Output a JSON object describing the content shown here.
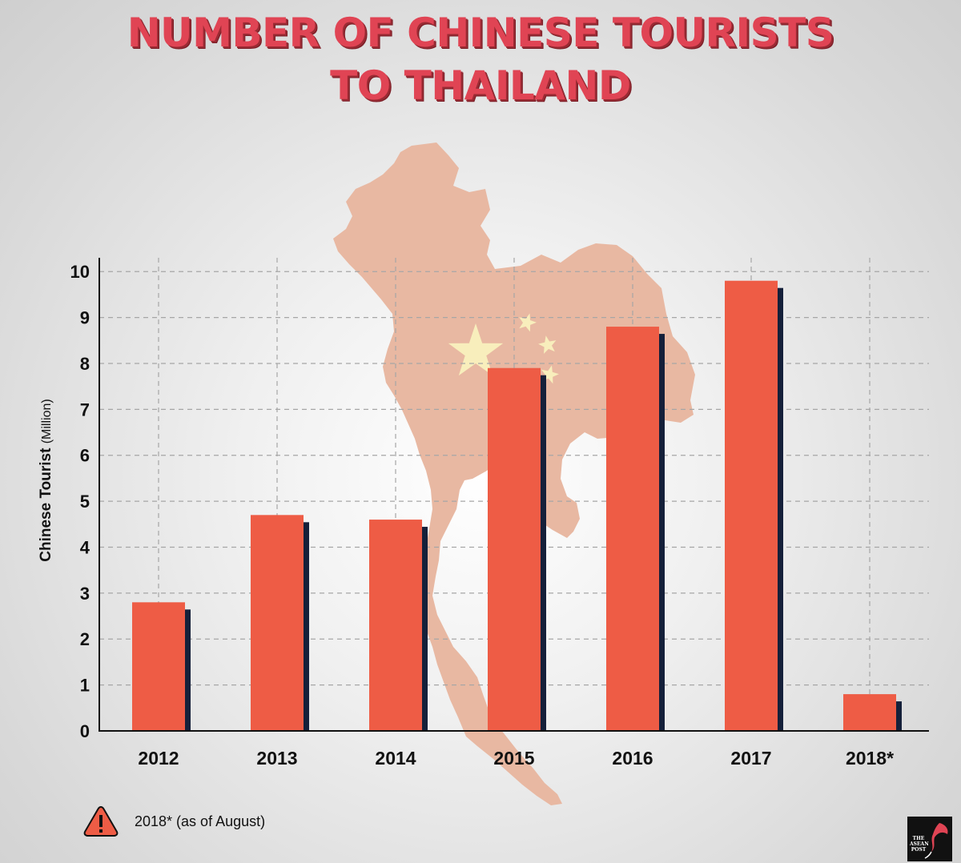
{
  "title": {
    "line1": "NUMBER OF CHINESE TOURISTS",
    "line2": "TO THAILAND"
  },
  "footnote": {
    "icon": "warning-icon",
    "text": "2018* (as of August)"
  },
  "logo": {
    "text": "THE ASEAN POST"
  },
  "colors": {
    "title": "#e04454",
    "bar": "#ee5c45",
    "bar_shadow": "#15203a",
    "map": "#e8b8a2",
    "stars": "#f8eebc",
    "grid": "#a6a6a6",
    "warning": "#ee5c45"
  },
  "chart_data": {
    "type": "bar",
    "categories": [
      "2012",
      "2013",
      "2014",
      "2015",
      "2016",
      "2017",
      "2018*"
    ],
    "values": [
      2.8,
      4.7,
      4.6,
      7.9,
      8.8,
      9.8,
      0.8
    ],
    "ylabel": "Chinese Tourist",
    "ylabel_unit": "(Million)",
    "yticks": [
      0,
      1,
      2,
      3,
      4,
      5,
      6,
      7,
      8,
      9,
      10
    ],
    "ylim": [
      0,
      10.3
    ],
    "grid": true
  }
}
